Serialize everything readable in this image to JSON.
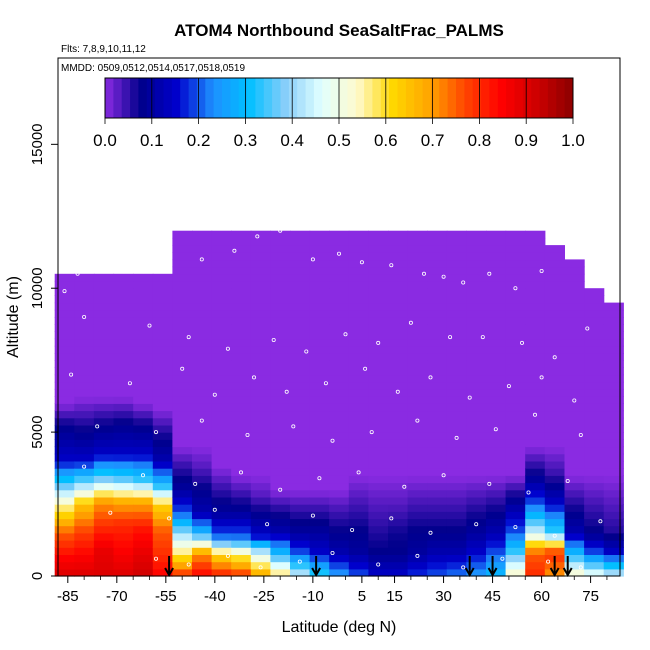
{
  "chart_data": {
    "type": "heatmap",
    "title": "ATOM4 Northbound SeaSaltFrac_PALMS",
    "flights_label": "Flts: 7,8,9,10,11,12",
    "dates_label": "MMDD: 0509,0512,0514,0517,0518,0519",
    "xlabel": "Latitude (deg N)",
    "ylabel": "Altitude (m)",
    "xlim": [
      -88,
      84
    ],
    "ylim": [
      0,
      18000
    ],
    "x_ticks": [
      -85,
      -70,
      -55,
      -40,
      -25,
      -10,
      5,
      15,
      30,
      45,
      60,
      75
    ],
    "x_tick_labels": [
      "-85",
      "-70",
      "-55",
      "-40",
      "-25",
      "-10",
      "5",
      "15",
      "30",
      "45",
      "60",
      "75"
    ],
    "y_ticks": [
      0,
      5000,
      10000,
      15000
    ],
    "y_tick_labels": [
      "0",
      "5000",
      "10000",
      "15000"
    ],
    "colorbar": {
      "min": 0,
      "max": 1,
      "tick_labels": [
        "0.0",
        "0.1",
        "0.2",
        "0.3",
        "0.4",
        "0.5",
        "0.6",
        "0.7",
        "0.8",
        "0.9",
        "1.0"
      ],
      "colors": [
        "#8a2be2",
        "#00008b",
        "#0000cd",
        "#1e90ff",
        "#00bfff",
        "#87cefa",
        "#e0ffff",
        "#fffacd",
        "#ffd700",
        "#ffa500",
        "#ff4500",
        "#ff0000",
        "#cd0000",
        "#8b0000"
      ]
    },
    "arrow_latitudes": [
      -54,
      -9,
      38,
      45,
      64,
      68
    ],
    "heat_columns": [
      {
        "lat": -86,
        "top": 10500,
        "profile": [
          [
            0,
            0.9
          ],
          [
            600,
            0.85
          ],
          [
            1500,
            0.75
          ],
          [
            2500,
            0.55
          ],
          [
            3200,
            0.35
          ],
          [
            4000,
            0.15
          ],
          [
            5200,
            0.08
          ],
          [
            6000,
            0.0
          ]
        ]
      },
      {
        "lat": -80,
        "top": 10500,
        "profile": [
          [
            0,
            0.9
          ],
          [
            700,
            0.85
          ],
          [
            1500,
            0.78
          ],
          [
            2500,
            0.65
          ],
          [
            3200,
            0.4
          ],
          [
            4000,
            0.15
          ],
          [
            5000,
            0.08
          ],
          [
            6200,
            0.0
          ]
        ]
      },
      {
        "lat": -74,
        "top": 10500,
        "profile": [
          [
            0,
            0.9
          ],
          [
            900,
            0.88
          ],
          [
            1700,
            0.8
          ],
          [
            2600,
            0.7
          ],
          [
            3300,
            0.4
          ],
          [
            4200,
            0.15
          ],
          [
            5200,
            0.08
          ],
          [
            6200,
            0.0
          ]
        ]
      },
      {
        "lat": -68,
        "top": 10500,
        "profile": [
          [
            0,
            0.9
          ],
          [
            900,
            0.85
          ],
          [
            1800,
            0.8
          ],
          [
            2600,
            0.68
          ],
          [
            3300,
            0.38
          ],
          [
            4200,
            0.15
          ],
          [
            5300,
            0.08
          ],
          [
            6200,
            0.0
          ]
        ]
      },
      {
        "lat": -62,
        "top": 10500,
        "profile": [
          [
            0,
            0.92
          ],
          [
            800,
            0.88
          ],
          [
            1700,
            0.82
          ],
          [
            2600,
            0.68
          ],
          [
            3300,
            0.35
          ],
          [
            4200,
            0.15
          ],
          [
            5200,
            0.08
          ],
          [
            6000,
            0.0
          ]
        ]
      },
      {
        "lat": -56,
        "top": 10500,
        "profile": [
          [
            0,
            0.85
          ],
          [
            700,
            0.8
          ],
          [
            1600,
            0.75
          ],
          [
            2500,
            0.62
          ],
          [
            3200,
            0.3
          ],
          [
            4000,
            0.12
          ],
          [
            5000,
            0.06
          ],
          [
            5800,
            0.0
          ]
        ]
      },
      {
        "lat": -50,
        "top": 12000,
        "profile": [
          [
            0,
            0.8
          ],
          [
            700,
            0.6
          ],
          [
            1500,
            0.4
          ],
          [
            2200,
            0.2
          ],
          [
            3000,
            0.1
          ],
          [
            3800,
            0.05
          ],
          [
            4500,
            0.0
          ]
        ]
      },
      {
        "lat": -44,
        "top": 12000,
        "profile": [
          [
            0,
            0.85
          ],
          [
            800,
            0.7
          ],
          [
            1500,
            0.3
          ],
          [
            2200,
            0.12
          ],
          [
            3000,
            0.08
          ],
          [
            3800,
            0.03
          ],
          [
            4500,
            0.0
          ]
        ]
      },
      {
        "lat": -38,
        "top": 12000,
        "profile": [
          [
            0,
            0.82
          ],
          [
            800,
            0.6
          ],
          [
            1400,
            0.2
          ],
          [
            2200,
            0.1
          ],
          [
            3000,
            0.05
          ],
          [
            3800,
            0.0
          ]
        ]
      },
      {
        "lat": -32,
        "top": 12000,
        "profile": [
          [
            0,
            0.8
          ],
          [
            800,
            0.55
          ],
          [
            1400,
            0.2
          ],
          [
            2200,
            0.1
          ],
          [
            2800,
            0.05
          ],
          [
            3500,
            0.0
          ]
        ]
      },
      {
        "lat": -26,
        "top": 12000,
        "profile": [
          [
            0,
            0.7
          ],
          [
            800,
            0.45
          ],
          [
            1400,
            0.15
          ],
          [
            2200,
            0.08
          ],
          [
            2800,
            0.03
          ],
          [
            3500,
            0.0
          ]
        ]
      },
      {
        "lat": -20,
        "top": 12000,
        "profile": [
          [
            0,
            0.6
          ],
          [
            800,
            0.3
          ],
          [
            1500,
            0.12
          ],
          [
            2300,
            0.06
          ],
          [
            3000,
            0.0
          ]
        ]
      },
      {
        "lat": -14,
        "top": 12000,
        "profile": [
          [
            0,
            0.45
          ],
          [
            800,
            0.2
          ],
          [
            1500,
            0.1
          ],
          [
            2300,
            0.05
          ],
          [
            3000,
            0.0
          ]
        ]
      },
      {
        "lat": -8,
        "top": 12000,
        "profile": [
          [
            0,
            0.35
          ],
          [
            800,
            0.15
          ],
          [
            1500,
            0.1
          ],
          [
            2300,
            0.05
          ],
          [
            3000,
            0.0
          ]
        ]
      },
      {
        "lat": -2,
        "top": 12000,
        "profile": [
          [
            0,
            0.25
          ],
          [
            800,
            0.12
          ],
          [
            1500,
            0.08
          ],
          [
            2300,
            0.04
          ],
          [
            3000,
            0.0
          ]
        ]
      },
      {
        "lat": 4,
        "top": 12000,
        "profile": [
          [
            0,
            0.2
          ],
          [
            800,
            0.1
          ],
          [
            1500,
            0.08
          ],
          [
            2500,
            0.04
          ],
          [
            3500,
            0.0
          ]
        ]
      },
      {
        "lat": 10,
        "top": 12000,
        "profile": [
          [
            0,
            0.15
          ],
          [
            800,
            0.08
          ],
          [
            1500,
            0.06
          ],
          [
            2500,
            0.03
          ],
          [
            3500,
            0.0
          ]
        ]
      },
      {
        "lat": 16,
        "top": 12000,
        "profile": [
          [
            0,
            0.15
          ],
          [
            800,
            0.08
          ],
          [
            1500,
            0.07
          ],
          [
            2500,
            0.03
          ],
          [
            3500,
            0.0
          ]
        ]
      },
      {
        "lat": 22,
        "top": 12000,
        "profile": [
          [
            0,
            0.18
          ],
          [
            800,
            0.1
          ],
          [
            1500,
            0.08
          ],
          [
            2500,
            0.04
          ],
          [
            3500,
            0.0
          ]
        ]
      },
      {
        "lat": 28,
        "top": 12000,
        "profile": [
          [
            0,
            0.2
          ],
          [
            800,
            0.12
          ],
          [
            1500,
            0.08
          ],
          [
            2500,
            0.04
          ],
          [
            3500,
            0.0
          ]
        ]
      },
      {
        "lat": 34,
        "top": 12000,
        "profile": [
          [
            0,
            0.22
          ],
          [
            800,
            0.12
          ],
          [
            1500,
            0.08
          ],
          [
            2500,
            0.04
          ],
          [
            3500,
            0.0
          ]
        ]
      },
      {
        "lat": 40,
        "top": 12000,
        "profile": [
          [
            0,
            0.25
          ],
          [
            800,
            0.15
          ],
          [
            1500,
            0.1
          ],
          [
            2500,
            0.05
          ],
          [
            3500,
            0.0
          ]
        ]
      },
      {
        "lat": 46,
        "top": 12000,
        "profile": [
          [
            0,
            0.3
          ],
          [
            800,
            0.2
          ],
          [
            1500,
            0.12
          ],
          [
            2500,
            0.06
          ],
          [
            3500,
            0.0
          ]
        ]
      },
      {
        "lat": 52,
        "top": 12000,
        "profile": [
          [
            0,
            0.55
          ],
          [
            800,
            0.35
          ],
          [
            1500,
            0.2
          ],
          [
            2500,
            0.1
          ],
          [
            3500,
            0.0
          ]
        ]
      },
      {
        "lat": 58,
        "top": 12000,
        "profile": [
          [
            0,
            0.8
          ],
          [
            800,
            0.75
          ],
          [
            1500,
            0.45
          ],
          [
            2500,
            0.2
          ],
          [
            3500,
            0.08
          ],
          [
            4500,
            0.0
          ]
        ]
      },
      {
        "lat": 64,
        "top": 11500,
        "profile": [
          [
            0,
            0.7
          ],
          [
            800,
            0.8
          ],
          [
            1500,
            0.35
          ],
          [
            2500,
            0.15
          ],
          [
            3500,
            0.05
          ],
          [
            4500,
            0.0
          ]
        ]
      },
      {
        "lat": 70,
        "top": 11000,
        "profile": [
          [
            0,
            0.55
          ],
          [
            800,
            0.3
          ],
          [
            1500,
            0.12
          ],
          [
            2500,
            0.06
          ],
          [
            3500,
            0.0
          ]
        ]
      },
      {
        "lat": 76,
        "top": 10000,
        "profile": [
          [
            0,
            0.5
          ],
          [
            800,
            0.2
          ],
          [
            1500,
            0.08
          ],
          [
            2500,
            0.04
          ],
          [
            3500,
            0.0
          ]
        ]
      },
      {
        "lat": 82,
        "top": 9500,
        "profile": [
          [
            0,
            0.45
          ],
          [
            800,
            0.15
          ],
          [
            1500,
            0.06
          ],
          [
            2500,
            0.03
          ],
          [
            3500,
            0.0
          ]
        ]
      }
    ],
    "samples": [
      [
        -86,
        9900
      ],
      [
        -82,
        10500
      ],
      [
        -78,
        10600
      ],
      [
        -70,
        10900
      ],
      [
        -62,
        10900
      ],
      [
        -56,
        11100
      ],
      [
        -44,
        11000
      ],
      [
        -34,
        11300
      ],
      [
        -27,
        11800
      ],
      [
        -20,
        12000
      ],
      [
        -10,
        11000
      ],
      [
        -2,
        11200
      ],
      [
        5,
        10900
      ],
      [
        14,
        10800
      ],
      [
        24,
        10500
      ],
      [
        30,
        10400
      ],
      [
        36,
        10200
      ],
      [
        44,
        10500
      ],
      [
        52,
        10000
      ],
      [
        60,
        10600
      ],
      [
        68,
        11200
      ],
      [
        74,
        10800
      ],
      [
        80,
        10100
      ],
      [
        -80,
        9000
      ],
      [
        -60,
        8700
      ],
      [
        -48,
        8300
      ],
      [
        -36,
        7900
      ],
      [
        -22,
        8200
      ],
      [
        -12,
        7800
      ],
      [
        0,
        8400
      ],
      [
        10,
        8100
      ],
      [
        20,
        8800
      ],
      [
        32,
        8300
      ],
      [
        42,
        8300
      ],
      [
        54,
        8100
      ],
      [
        64,
        7600
      ],
      [
        74,
        8600
      ],
      [
        -84,
        7000
      ],
      [
        -66,
        6700
      ],
      [
        -50,
        7200
      ],
      [
        -40,
        6300
      ],
      [
        -28,
        6900
      ],
      [
        -18,
        6400
      ],
      [
        -6,
        6700
      ],
      [
        6,
        7200
      ],
      [
        16,
        6400
      ],
      [
        26,
        6900
      ],
      [
        38,
        6200
      ],
      [
        50,
        6600
      ],
      [
        60,
        6900
      ],
      [
        70,
        6100
      ],
      [
        -76,
        5200
      ],
      [
        -58,
        5000
      ],
      [
        -44,
        5400
      ],
      [
        -30,
        4900
      ],
      [
        -16,
        5200
      ],
      [
        -4,
        4700
      ],
      [
        8,
        5000
      ],
      [
        22,
        5400
      ],
      [
        34,
        4800
      ],
      [
        46,
        5100
      ],
      [
        58,
        5600
      ],
      [
        72,
        4900
      ],
      [
        -80,
        3800
      ],
      [
        -62,
        3500
      ],
      [
        -46,
        3200
      ],
      [
        -32,
        3600
      ],
      [
        -20,
        3000
      ],
      [
        -8,
        3400
      ],
      [
        4,
        3600
      ],
      [
        18,
        3100
      ],
      [
        30,
        3500
      ],
      [
        44,
        3200
      ],
      [
        56,
        2900
      ],
      [
        68,
        3300
      ],
      [
        -72,
        2200
      ],
      [
        -54,
        2000
      ],
      [
        -40,
        2300
      ],
      [
        -24,
        1800
      ],
      [
        -10,
        2100
      ],
      [
        2,
        1600
      ],
      [
        14,
        2000
      ],
      [
        26,
        1500
      ],
      [
        40,
        1800
      ],
      [
        52,
        1700
      ],
      [
        64,
        1400
      ],
      [
        78,
        1900
      ],
      [
        -58,
        600
      ],
      [
        -48,
        400
      ],
      [
        -36,
        700
      ],
      [
        -26,
        300
      ],
      [
        -14,
        500
      ],
      [
        -4,
        800
      ],
      [
        10,
        400
      ],
      [
        22,
        700
      ],
      [
        36,
        300
      ],
      [
        48,
        600
      ],
      [
        62,
        500
      ],
      [
        72,
        300
      ]
    ]
  }
}
